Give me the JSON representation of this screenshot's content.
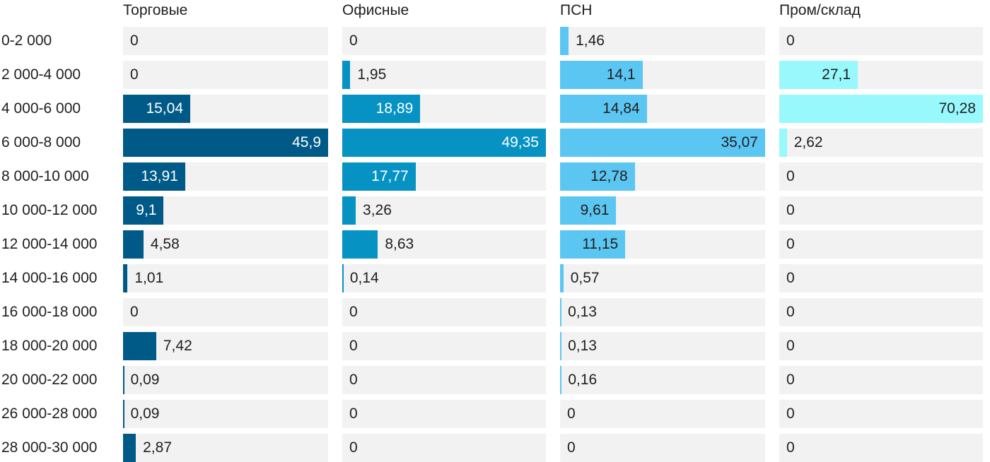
{
  "chart_data": {
    "type": "bar",
    "orientation": "horizontal",
    "layout": "small-multiples",
    "categories": [
      "0-2 000",
      "2 000-4 000",
      "4 000-6 000",
      "6 000-8 000",
      "8 000-10 000",
      "10 000-12 000",
      "12 000-14 000",
      "14 000-16 000",
      "16 000-18 000",
      "18 000-20 000",
      "20 000-22 000",
      "26 000-28 000",
      "28 000-30 000"
    ],
    "series": [
      {
        "name": "Торговые",
        "color": "#005a87",
        "values": [
          0,
          0,
          15.04,
          45.9,
          13.91,
          9.1,
          4.58,
          1.01,
          0,
          7.42,
          0.09,
          0.09,
          2.87
        ],
        "labels": [
          "0",
          "0",
          "15,04",
          "45,9",
          "13,91",
          "9,1",
          "4,58",
          "1,01",
          "0",
          "7,42",
          "0,09",
          "0,09",
          "2,87"
        ]
      },
      {
        "name": "Офисные",
        "color": "#0693c4",
        "values": [
          0,
          1.95,
          18.89,
          49.35,
          17.77,
          3.26,
          8.63,
          0.14,
          0,
          0,
          0,
          0,
          0
        ],
        "labels": [
          "0",
          "1,95",
          "18,89",
          "49,35",
          "17,77",
          "3,26",
          "8,63",
          "0,14",
          "0",
          "0",
          "0",
          "0",
          "0"
        ]
      },
      {
        "name": "ПСН",
        "color": "#5cc6f2",
        "values": [
          1.46,
          14.1,
          14.84,
          35.07,
          12.78,
          9.61,
          11.15,
          0.57,
          0.13,
          0.13,
          0.16,
          0,
          0
        ],
        "labels": [
          "1,46",
          "14,1",
          "14,84",
          "35,07",
          "12,78",
          "9,61",
          "11,15",
          "0,57",
          "0,13",
          "0,13",
          "0,16",
          "0",
          "0"
        ]
      },
      {
        "name": "Пром/склад",
        "color": "#98f8fc",
        "values": [
          0,
          27.1,
          70.28,
          2.62,
          0,
          0,
          0,
          0,
          0,
          0,
          0,
          0,
          0
        ],
        "labels": [
          "0",
          "27,1",
          "70,28",
          "2,62",
          "0",
          "0",
          "0",
          "0",
          "0",
          "0",
          "0",
          "0",
          "0"
        ]
      }
    ],
    "inside_label_dark": [
      false,
      false,
      true,
      true
    ],
    "grid": false,
    "legend": "none"
  }
}
